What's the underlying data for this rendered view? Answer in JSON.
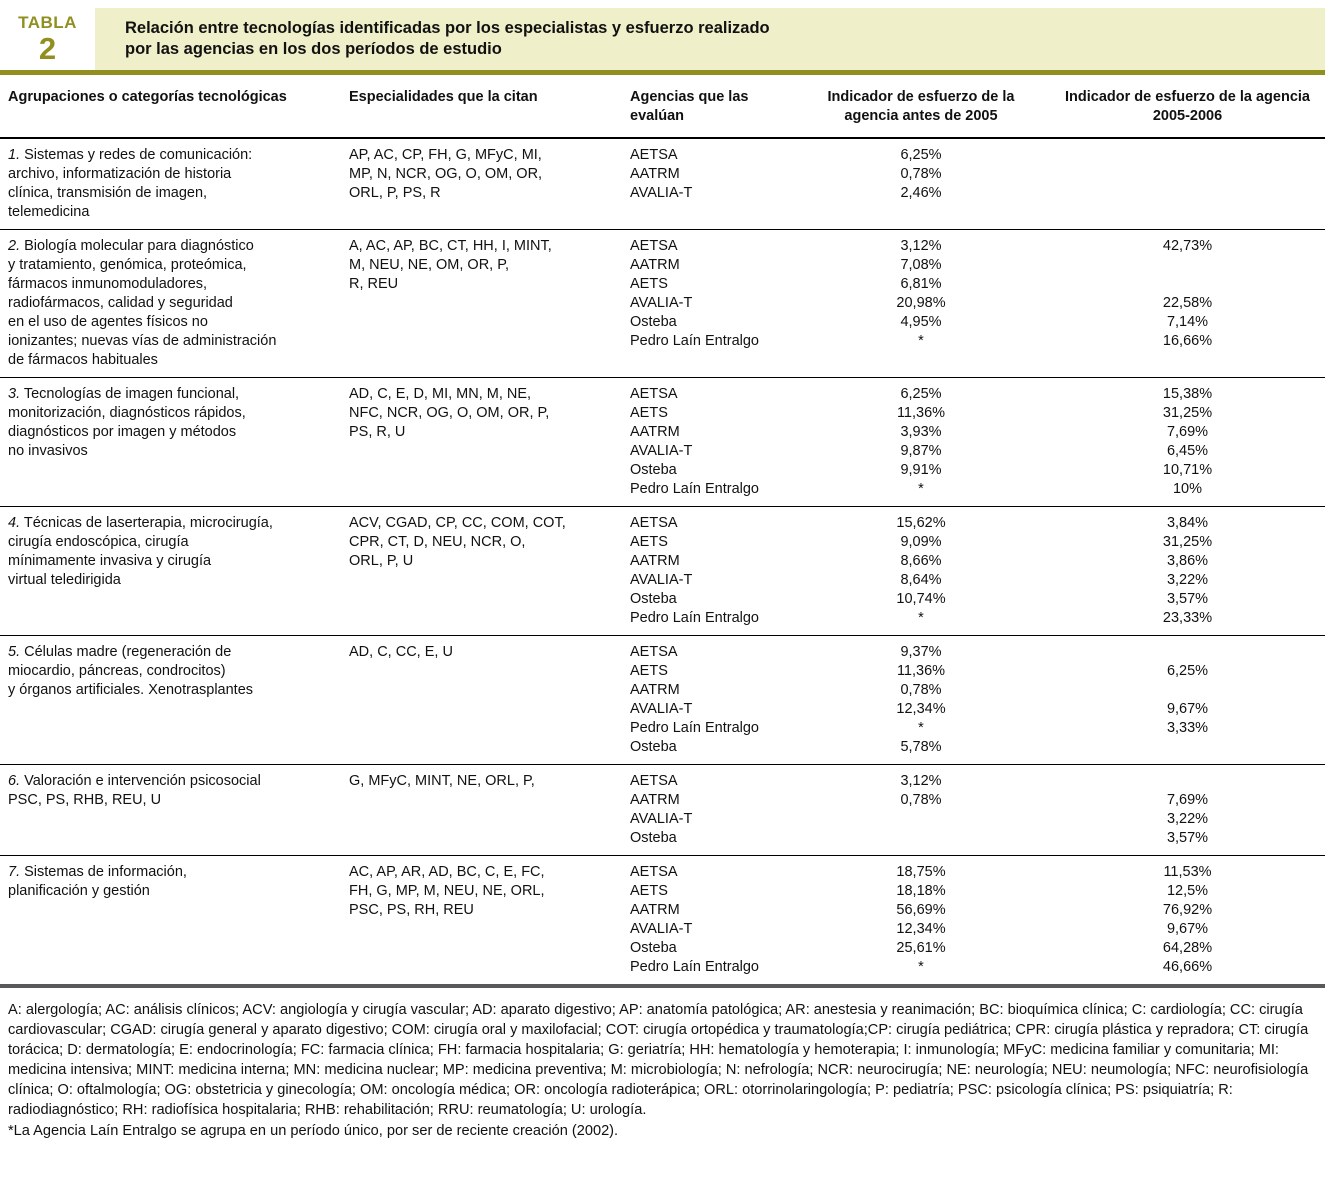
{
  "label": {
    "word": "TABLA",
    "number": "2"
  },
  "title": "Relación entre tecnologías identificadas por los especialistas y esfuerzo realizado\npor las agencias en los dos períodos de estudio",
  "colors": {
    "accent_olive": "#918f1f",
    "banner_bg": "#efefca",
    "bottom_rule": "#58595b",
    "text": "#111111"
  },
  "columns": {
    "c1": "Agrupaciones o categorías tecnológicas",
    "c2": "Especialidades que la citan",
    "c3": "Agencias que las evalúan",
    "c4": "Indicador de esfuerzo de la\nagencia antes de 2005",
    "c5": "Indicador de esfuerzo de la agencia\n2005-2006"
  },
  "rows": [
    {
      "num": "1.",
      "category": " Sistemas y redes de comunicación:\narchivo, informatización de historia\nclínica, transmisión de imagen,\ntelemedicina",
      "specialties": "AP, AC, CP, FH, G, MFyC, MI,\nMP, N, NCR, OG, O, OM, OR,\nORL, P, PS, R",
      "agencies": [
        {
          "name": "AETSA",
          "before": "6,25%",
          "after": ""
        },
        {
          "name": "AATRM",
          "before": "0,78%",
          "after": ""
        },
        {
          "name": "AVALIA-T",
          "before": "2,46%",
          "after": ""
        }
      ]
    },
    {
      "num": "2.",
      "category": " Biología molecular para diagnóstico\ny tratamiento, genómica, proteómica,\nfármacos inmunomoduladores,\nradiofármacos, calidad y seguridad\nen el uso de agentes físicos no\nionizantes; nuevas vías de administración\nde fármacos habituales",
      "specialties": "A, AC, AP, BC, CT, HH, I, MINT,\nM, NEU, NE, OM, OR, P,\nR, REU",
      "agencies": [
        {
          "name": "AETSA",
          "before": "3,12%",
          "after": "42,73%"
        },
        {
          "name": "AATRM",
          "before": "7,08%",
          "after": ""
        },
        {
          "name": "AETS",
          "before": "6,81%",
          "after": ""
        },
        {
          "name": "AVALIA-T",
          "before": "20,98%",
          "after": "22,58%"
        },
        {
          "name": "Osteba",
          "before": "4,95%",
          "after": "7,14%"
        },
        {
          "name": "Pedro Laín Entralgo",
          "before": "*",
          "after": "16,66%"
        }
      ]
    },
    {
      "num": "3.",
      "category": " Tecnologías de imagen funcional,\nmonitorización, diagnósticos rápidos,\ndiagnósticos por imagen y métodos\nno invasivos",
      "specialties": "AD, C, E, D, MI, MN, M, NE,\nNFC, NCR, OG, O, OM, OR, P,\nPS, R, U",
      "agencies": [
        {
          "name": "AETSA",
          "before": "6,25%",
          "after": "15,38%"
        },
        {
          "name": "AETS",
          "before": "11,36%",
          "after": "31,25%"
        },
        {
          "name": "AATRM",
          "before": "3,93%",
          "after": "7,69%"
        },
        {
          "name": "AVALIA-T",
          "before": "9,87%",
          "after": "6,45%"
        },
        {
          "name": "Osteba",
          "before": "9,91%",
          "after": "10,71%"
        },
        {
          "name": "Pedro Laín Entralgo",
          "before": "*",
          "after": "10%"
        }
      ]
    },
    {
      "num": "4.",
      "category": " Técnicas de laserterapia, microcirugía,\ncirugía endoscópica, cirugía\nmínimamente invasiva y cirugía\nvirtual teledirigida",
      "specialties": "ACV, CGAD, CP, CC, COM, COT,\nCPR, CT, D, NEU, NCR, O,\nORL, P, U",
      "agencies": [
        {
          "name": "AETSA",
          "before": "15,62%",
          "after": "3,84%"
        },
        {
          "name": "AETS",
          "before": "9,09%",
          "after": "31,25%"
        },
        {
          "name": "AATRM",
          "before": "8,66%",
          "after": "3,86%"
        },
        {
          "name": "AVALIA-T",
          "before": "8,64%",
          "after": "3,22%"
        },
        {
          "name": "Osteba",
          "before": "10,74%",
          "after": "3,57%"
        },
        {
          "name": "Pedro Laín Entralgo",
          "before": "*",
          "after": "23,33%"
        }
      ]
    },
    {
      "num": "5.",
      "category": " Células madre (regeneración de\nmiocardio, páncreas, condrocitos)\ny órganos artificiales. Xenotrasplantes",
      "specialties": "AD, C, CC, E, U",
      "agencies": [
        {
          "name": "AETSA",
          "before": "9,37%",
          "after": ""
        },
        {
          "name": "AETS",
          "before": "11,36%",
          "after": "6,25%"
        },
        {
          "name": "AATRM",
          "before": "0,78%",
          "after": ""
        },
        {
          "name": "AVALIA-T",
          "before": "12,34%",
          "after": "9,67%"
        },
        {
          "name": "Pedro Laín Entralgo",
          "before": "*",
          "after": "3,33%"
        },
        {
          "name": "Osteba",
          "before": "5,78%",
          "after": ""
        }
      ]
    },
    {
      "num": "6.",
      "category": " Valoración e intervención psicosocial\nPSC, PS, RHB, REU, U",
      "specialties": "G, MFyC, MINT, NE, ORL, P,",
      "agencies": [
        {
          "name": "AETSA",
          "before": "3,12%",
          "after": ""
        },
        {
          "name": "AATRM",
          "before": "0,78%",
          "after": "7,69%"
        },
        {
          "name": "AVALIA-T",
          "before": "",
          "after": "3,22%"
        },
        {
          "name": "Osteba",
          "before": "",
          "after": "3,57%"
        }
      ]
    },
    {
      "num": "7.",
      "category": " Sistemas de información,\nplanificación y gestión",
      "specialties": "AC, AP, AR, AD, BC, C, E, FC,\nFH, G, MP, M, NEU, NE, ORL,\nPSC, PS, RH, REU",
      "agencies": [
        {
          "name": "AETSA",
          "before": "18,75%",
          "after": "11,53%"
        },
        {
          "name": "AETS",
          "before": "18,18%",
          "after": "12,5%"
        },
        {
          "name": "AATRM",
          "before": "56,69%",
          "after": "76,92%"
        },
        {
          "name": "AVALIA-T",
          "before": "12,34%",
          "after": "9,67%"
        },
        {
          "name": "Osteba",
          "before": "25,61%",
          "after": "64,28%"
        },
        {
          "name": "Pedro Laín Entralgo",
          "before": "*",
          "after": "46,66%"
        }
      ]
    }
  ],
  "footnotes": {
    "abbreviations": "A: alergología; AC: análisis clínicos; ACV: angiología y cirugía vascular; AD: aparato digestivo; AP: anatomía patológica; AR: anestesia y reanimación; BC: bioquímica clínica; C: cardiología; CC: cirugía cardiovascular; CGAD: cirugía general y aparato digestivo; COM: cirugía oral y maxilofacial; COT: cirugía ortopédica y traumatología;CP: cirugía pediátrica; CPR: cirugía plástica y repradora; CT: cirugía torácica; D: dermatología; E: endocrinología; FC: farmacia clínica; FH: farmacia hospitalaria; G: geriatría; HH: hematología y hemoterapia; I: inmunología; MFyC: medicina familiar y comunitaria; MI: medicina intensiva; MINT: medicina interna; MN: medicina nuclear; MP: medicina preventiva; M: microbiología; N: nefrología; NCR: neurocirugía; NE: neurología; NEU: neumología; NFC: neurofisiología clínica; O: oftalmología; OG: obstetricia y ginecología; OM: oncología médica; OR: oncología radioterápica; ORL: otorrinolaringología; P: pediatría; PSC: psicología clínica; PS: psiquiatría; R: radiodiagnóstico; RH: radiofísica hospitalaria; RHB: rehabilitación; RRU: reumatología; U: urología.",
    "asterisk_note": "*La Agencia Laín Entralgo se agrupa en un período único, por ser de reciente creación (2002)."
  }
}
